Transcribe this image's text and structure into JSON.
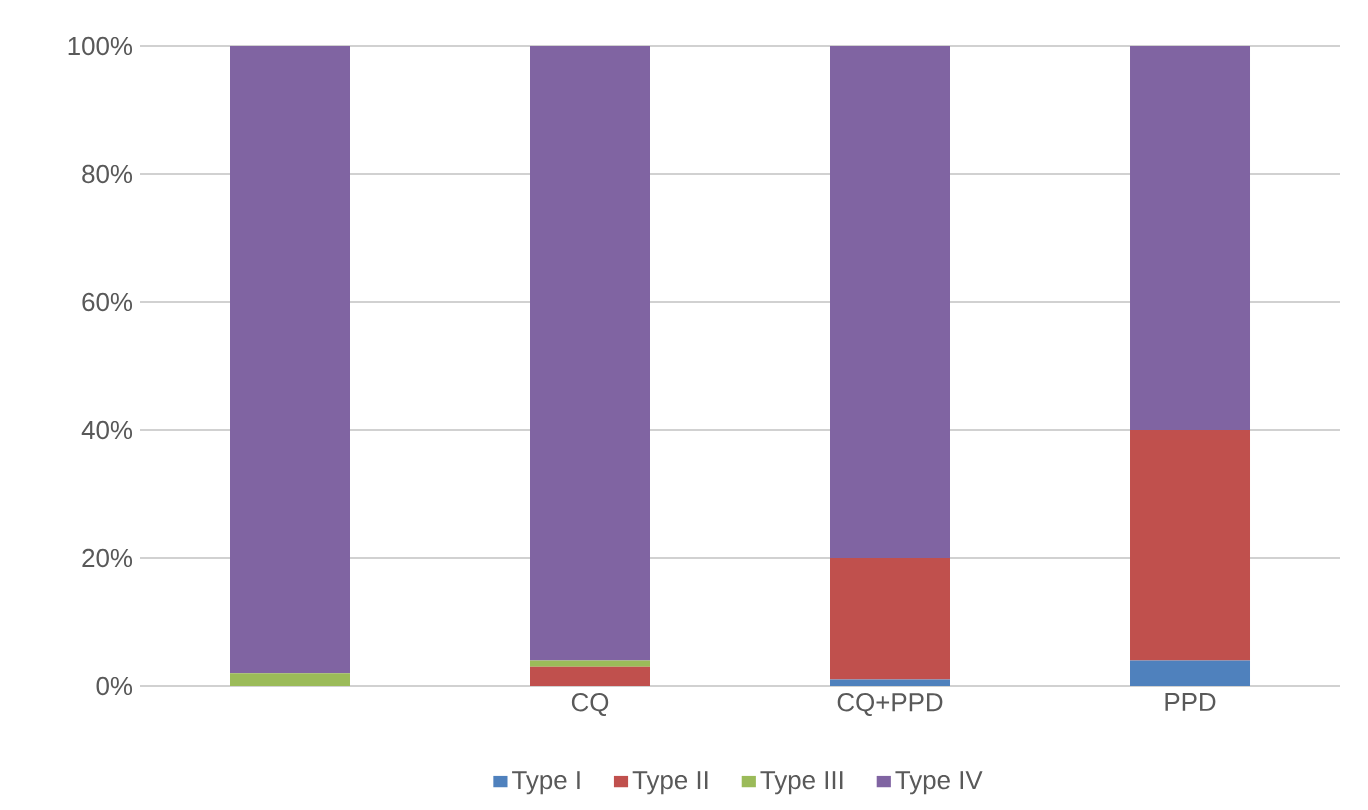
{
  "chart_data": {
    "type": "bar",
    "stacked": true,
    "categories": [
      null,
      "CQ",
      "CQ+PPD",
      "PPD"
    ],
    "series": [
      {
        "name": "Type I",
        "color": "#4f81bd",
        "values": [
          0,
          0,
          1,
          4
        ]
      },
      {
        "name": "Type II",
        "color": "#c0504d",
        "values": [
          0,
          3,
          19,
          36
        ]
      },
      {
        "name": "Type III",
        "color": "#9bbb59",
        "values": [
          2,
          1,
          0,
          0
        ]
      },
      {
        "name": "Type IV",
        "color": "#8064a2",
        "values": [
          98,
          96,
          80,
          60
        ]
      }
    ],
    "ylim": [
      0,
      100
    ],
    "yticks": [
      {
        "value": 0,
        "label": "0%"
      },
      {
        "value": 20,
        "label": "20%"
      },
      {
        "value": 40,
        "label": "40%"
      },
      {
        "value": 60,
        "label": "60%"
      },
      {
        "value": 80,
        "label": "80%"
      },
      {
        "value": 100,
        "label": "100%"
      }
    ],
    "grid": "y",
    "legend": "bottom"
  }
}
